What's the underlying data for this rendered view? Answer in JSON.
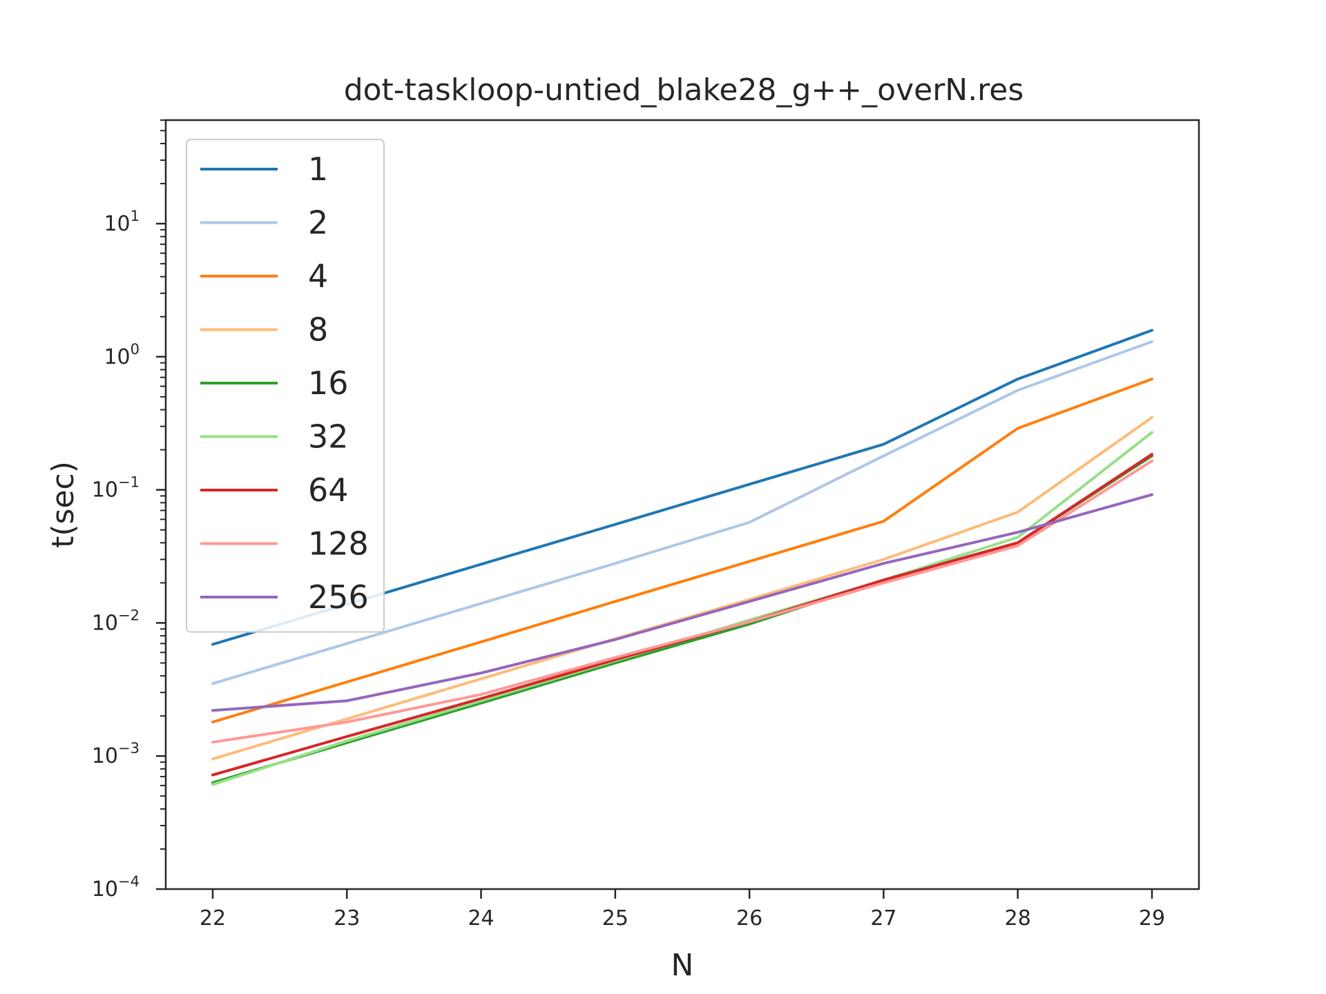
{
  "chart_data": {
    "type": "line",
    "title": "dot-taskloop-untied_blake28_g++_overN.res",
    "xlabel": "N",
    "ylabel": "t(sec)",
    "x": [
      22,
      23,
      24,
      25,
      26,
      27,
      28,
      29
    ],
    "x_ticks": [
      "22",
      "23",
      "24",
      "25",
      "26",
      "27",
      "28",
      "29"
    ],
    "y_scale": "log",
    "ylim": [
      0.0001,
      60
    ],
    "y_ticks": [
      {
        "value": 0.0001,
        "base": "10",
        "exp": "−4"
      },
      {
        "value": 0.001,
        "base": "10",
        "exp": "−3"
      },
      {
        "value": 0.01,
        "base": "10",
        "exp": "−2"
      },
      {
        "value": 0.1,
        "base": "10",
        "exp": "−1"
      },
      {
        "value": 1,
        "base": "10",
        "exp": "0"
      },
      {
        "value": 10,
        "base": "10",
        "exp": "1"
      }
    ],
    "grid": false,
    "legend_position": "upper-left",
    "series": [
      {
        "name": "1",
        "color": "#1f77b4",
        "values": [
          0.0069,
          0.0138,
          0.0276,
          0.055,
          0.11,
          0.22,
          0.68,
          1.58
        ]
      },
      {
        "name": "2",
        "color": "#aec7e8",
        "values": [
          0.0035,
          0.007,
          0.014,
          0.028,
          0.057,
          0.18,
          0.56,
          1.3
        ]
      },
      {
        "name": "4",
        "color": "#ff7f0e",
        "values": [
          0.0018,
          0.0036,
          0.0072,
          0.0145,
          0.029,
          0.058,
          0.29,
          0.68
        ]
      },
      {
        "name": "8",
        "color": "#ffbb78",
        "values": [
          0.00095,
          0.0019,
          0.0038,
          0.0076,
          0.015,
          0.03,
          0.068,
          0.35
        ]
      },
      {
        "name": "16",
        "color": "#2ca02c",
        "values": [
          0.00063,
          0.00126,
          0.0025,
          0.005,
          0.0098,
          0.021,
          0.04,
          0.18
        ]
      },
      {
        "name": "32",
        "color": "#98df8a",
        "values": [
          0.00061,
          0.0013,
          0.0026,
          0.0052,
          0.0105,
          0.021,
          0.044,
          0.27
        ]
      },
      {
        "name": "64",
        "color": "#d62728",
        "values": [
          0.00072,
          0.0014,
          0.0027,
          0.0053,
          0.0102,
          0.021,
          0.04,
          0.185
        ]
      },
      {
        "name": "128",
        "color": "#ff9896",
        "values": [
          0.00127,
          0.0018,
          0.0029,
          0.0055,
          0.0102,
          0.02,
          0.038,
          0.165
        ]
      },
      {
        "name": "256",
        "color": "#9467bd",
        "values": [
          0.0022,
          0.0026,
          0.0042,
          0.0075,
          0.0145,
          0.028,
          0.048,
          0.092
        ]
      }
    ]
  }
}
